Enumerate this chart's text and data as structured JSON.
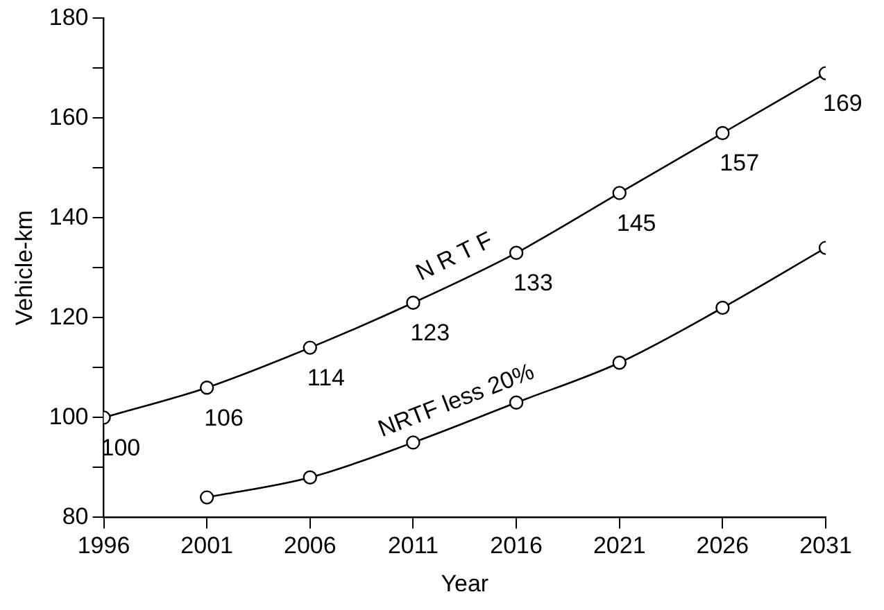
{
  "chart_data": {
    "type": "line",
    "xlabel": "Year",
    "ylabel": "Vehicle-km",
    "xlim": [
      1996,
      2031
    ],
    "xticks": [
      1996,
      2001,
      2006,
      2011,
      2016,
      2021,
      2026,
      2031
    ],
    "ylim": [
      80,
      180
    ],
    "yticks": [
      80,
      {
        "value": 90,
        "label": null
      },
      100,
      {
        "value": 110,
        "label": null
      },
      120,
      {
        "value": 130,
        "label": null
      },
      140,
      {
        "value": 150,
        "label": null
      },
      160,
      {
        "value": 170,
        "label": null
      },
      180
    ],
    "grid": false,
    "legend": false,
    "marker": "circle",
    "line_style": "solid",
    "series": [
      {
        "name": "N R T F",
        "color": "#000000",
        "x": [
          1996,
          2001,
          2006,
          2011,
          2016,
          2021,
          2026,
          2031
        ],
        "values": [
          100,
          106,
          114,
          123,
          133,
          145,
          157,
          169
        ],
        "value_labels": [
          "100",
          "106",
          "114",
          "123",
          "133",
          "145",
          "157",
          "169"
        ]
      },
      {
        "name": "NRTF less 20%",
        "color": "#000000",
        "x": [
          2001,
          2006,
          2011,
          2016,
          2021,
          2026,
          2031
        ],
        "values": [
          84,
          88,
          95,
          103,
          111,
          122,
          134
        ]
      }
    ]
  }
}
